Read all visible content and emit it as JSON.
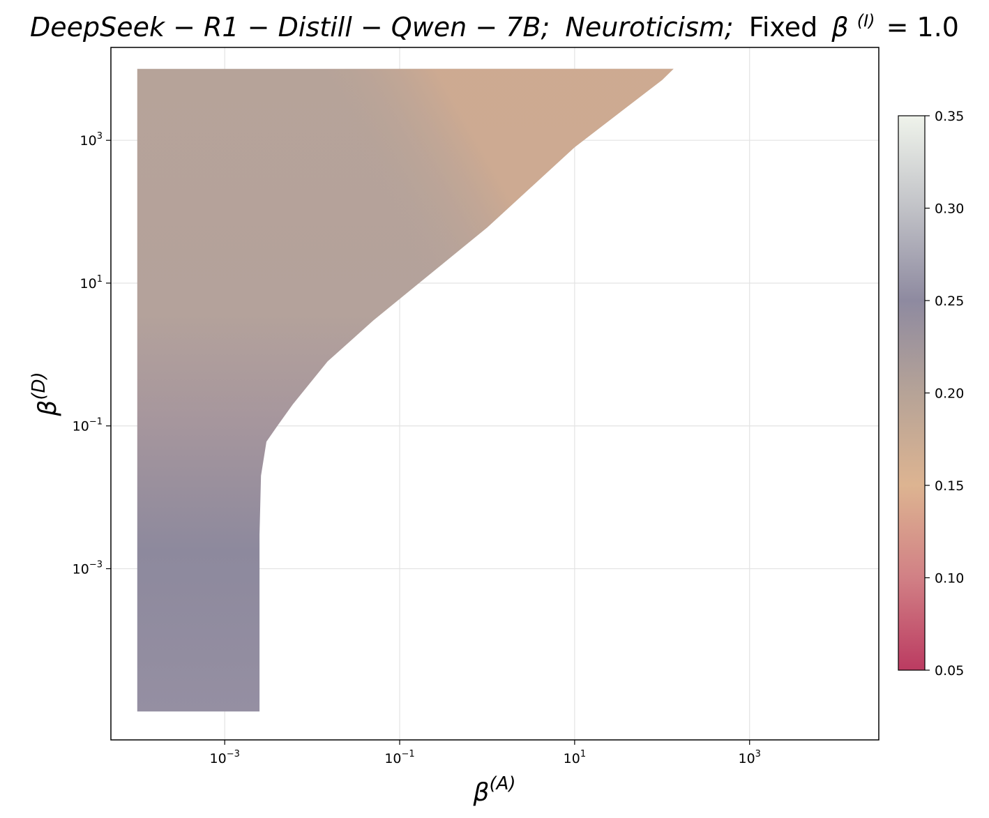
{
  "chart_data": {
    "type": "heatmap",
    "title": {
      "model": "DeepSeek − R1 − Distill − Qwen − 7B;",
      "trait": "Neuroticism;",
      "fixed": "Fixed",
      "fixed_symbol": "β",
      "fixed_sup": "(I)",
      "fixed_value": "= 1.0"
    },
    "xlabel": {
      "symbol": "β",
      "sup": "(A)"
    },
    "ylabel": {
      "symbol": "β",
      "sup": "(D)"
    },
    "xscale": "log",
    "yscale": "log",
    "xlim": [
      5e-05,
      30000
    ],
    "ylim": [
      4e-06,
      20000
    ],
    "x_ticks": [
      {
        "value": 0.001,
        "base": "10",
        "exp": "−3"
      },
      {
        "value": 0.1,
        "base": "10",
        "exp": "−1"
      },
      {
        "value": 10,
        "base": "10",
        "exp": "1"
      },
      {
        "value": 1000,
        "base": "10",
        "exp": "3"
      }
    ],
    "y_ticks": [
      {
        "value": 0.001,
        "base": "10",
        "exp": "−3"
      },
      {
        "value": 0.1,
        "base": "10",
        "exp": "−1"
      },
      {
        "value": 10,
        "base": "10",
        "exp": "1"
      },
      {
        "value": 1000,
        "base": "10",
        "exp": "3"
      }
    ],
    "grid": true,
    "domain": {
      "x_min": 0.0001,
      "y_min": 1e-05,
      "y_max": 10000,
      "boundary": [
        [
          0.0025,
          1e-05
        ],
        [
          0.0025,
          0.003
        ],
        [
          0.0026,
          0.02
        ],
        [
          0.003,
          0.06
        ],
        [
          0.004,
          0.1
        ],
        [
          0.006,
          0.2
        ],
        [
          0.015,
          0.8
        ],
        [
          0.05,
          3
        ],
        [
          0.2,
          12
        ],
        [
          1,
          60
        ],
        [
          10,
          800
        ],
        [
          100,
          7000
        ],
        [
          135,
          10000
        ]
      ]
    },
    "values": {
      "lower_left": 0.235,
      "mid_left": 0.22,
      "upper": 0.2,
      "edge_near_boundary": 0.165
    },
    "colorbar": {
      "ticks": [
        "0.05",
        "0.10",
        "0.15",
        "0.20",
        "0.25",
        "0.30",
        "0.35"
      ],
      "min": 0.05,
      "max": 0.35,
      "colors": [
        "#bb3b61",
        "#d18085",
        "#ddb491",
        "#b6a397",
        "#8e8aa0",
        "#c1c2c7",
        "#eff3eb"
      ]
    }
  }
}
